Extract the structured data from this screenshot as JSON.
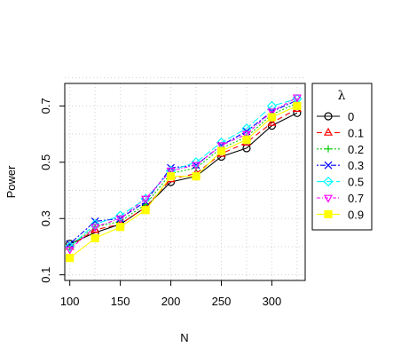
{
  "chart_data": {
    "type": "line",
    "xlabel": "N",
    "ylabel": "Power",
    "x": [
      100,
      125,
      150,
      175,
      200,
      225,
      250,
      275,
      300,
      325
    ],
    "xlim": [
      95,
      333
    ],
    "ylim": [
      0.08,
      0.78
    ],
    "xticks": [
      "100",
      "150",
      "200",
      "250",
      "300"
    ],
    "yticks": [
      "0.1",
      "0.3",
      "0.5",
      "0.7"
    ],
    "grid": true,
    "legend_title": "λ",
    "legend_position": "right",
    "series": [
      {
        "name": "0",
        "color": "#000000",
        "marker": "circle",
        "dash": "",
        "values": [
          0.21,
          0.25,
          0.28,
          0.34,
          0.43,
          0.45,
          0.52,
          0.55,
          0.63,
          0.675
        ]
      },
      {
        "name": "0.1",
        "color": "#ff0000",
        "marker": "triangle",
        "dash": "6,4",
        "values": [
          0.2,
          0.26,
          0.28,
          0.34,
          0.44,
          0.46,
          0.53,
          0.57,
          0.64,
          0.69
        ]
      },
      {
        "name": "0.2",
        "color": "#00cd00",
        "marker": "plus",
        "dash": "2,2",
        "values": [
          0.2,
          0.27,
          0.29,
          0.35,
          0.46,
          0.48,
          0.55,
          0.59,
          0.67,
          0.71
        ]
      },
      {
        "name": "0.3",
        "color": "#0000ff",
        "marker": "x",
        "dash": "2,2,6,2",
        "values": [
          0.21,
          0.29,
          0.3,
          0.36,
          0.48,
          0.49,
          0.56,
          0.61,
          0.68,
          0.72
        ]
      },
      {
        "name": "0.5",
        "color": "#00ffff",
        "marker": "diamond",
        "dash": "8,3",
        "values": [
          0.2,
          0.28,
          0.31,
          0.37,
          0.47,
          0.5,
          0.57,
          0.62,
          0.7,
          0.725
        ]
      },
      {
        "name": "0.7",
        "color": "#ff00ff",
        "marker": "triangle-down",
        "dash": "4,2,1,2",
        "values": [
          0.19,
          0.27,
          0.3,
          0.37,
          0.47,
          0.49,
          0.56,
          0.6,
          0.68,
          0.73
        ]
      },
      {
        "name": "0.9",
        "color": "#ffff00",
        "marker": "square",
        "dash": "",
        "values": [
          0.16,
          0.23,
          0.27,
          0.33,
          0.45,
          0.45,
          0.54,
          0.58,
          0.66,
          0.7
        ]
      }
    ]
  }
}
